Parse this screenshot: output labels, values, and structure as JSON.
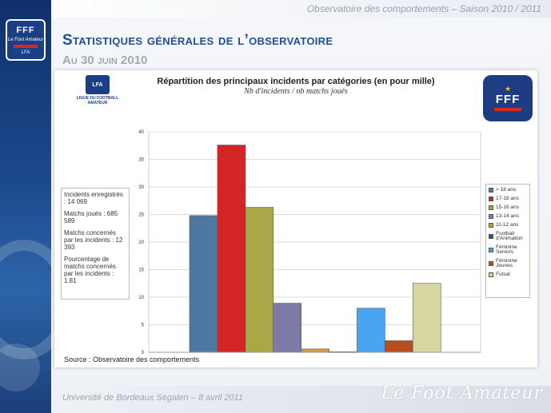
{
  "header": {
    "right_text": "Observatoire des comportements – Saison 2010 / 2011"
  },
  "slide": {
    "title": "Statistiques générales de l’observatoire",
    "subtitle": "Au 30 juin 2010"
  },
  "logos": {
    "band": {
      "letters": "FFF",
      "script": "Le Foot Amateur",
      "initials": "LFA"
    },
    "lfa": {
      "initials": "LFA",
      "caption": "LIGUE DU FOOTBALL AMATEUR"
    },
    "fff": {
      "letters": "FFF"
    }
  },
  "info": {
    "incidents_label": "Incidents enregistrés : 14 069",
    "matchs_label": "Matchs joués : 685 589",
    "concernes_label": "Matchs concernés par les incidents : 12 393",
    "pourcentage_label": "Pourcentage de matchs concernés par les incidents : 1.81"
  },
  "source": "Source : Observatoire des comportements",
  "footer": {
    "left": "Université de Bordeaux Segalen – 8 avril 2011",
    "right": "Le Foot Amateur"
  },
  "chart_data": {
    "type": "bar",
    "title": "Répartition des principaux incidents par catégories (en pour mille)",
    "subtitle": "Nb d'incidents / nb matchs joués",
    "ylim": [
      0,
      40
    ],
    "yticks": [
      0,
      5,
      10,
      15,
      20,
      25,
      30,
      35,
      40
    ],
    "grid": true,
    "legend_position": "right",
    "series": [
      {
        "name": "> 18 ans",
        "value": 24.8,
        "color": "#4f77a3"
      },
      {
        "name": "17-18 ans",
        "value": 37.6,
        "color": "#d42424"
      },
      {
        "name": "15-16 ans",
        "value": 26.3,
        "color": "#a8a848"
      },
      {
        "name": "13-14 ans",
        "value": 8.9,
        "color": "#7e7aa8"
      },
      {
        "name": "11-12 ans",
        "value": 0.6,
        "color": "#d69a3a"
      },
      {
        "name": "Football d'Animation",
        "value": 0.1,
        "color": "#2d5a6c"
      },
      {
        "name": "Féminine Seniors",
        "value": 8.0,
        "color": "#4ba4ef"
      },
      {
        "name": "Féminine Jeunes",
        "value": 2.1,
        "color": "#b84e1f"
      },
      {
        "name": "Futsal",
        "value": 12.5,
        "color": "#d8d6a0"
      }
    ]
  }
}
